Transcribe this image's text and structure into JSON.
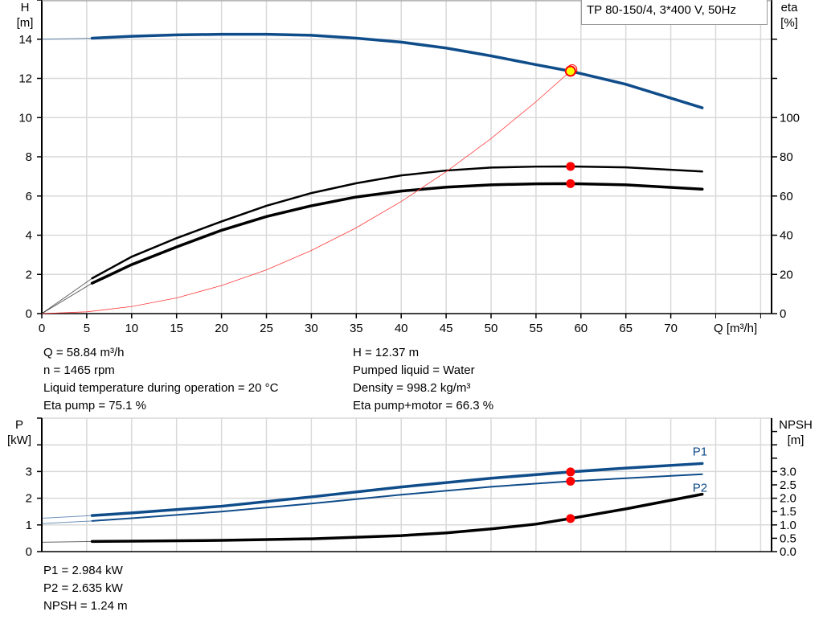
{
  "legend_title": "TP 80-150/4, 3*400 V, 50Hz",
  "info_top": {
    "left": [
      "Q = 58.84 m³/h",
      "n = 1465 rpm",
      "Liquid temperature during operation = 20 °C",
      "Eta pump = 75.1 %"
    ],
    "right": [
      "H = 12.37 m",
      "Pumped liquid = Water",
      "Density = 998.2 kg/m³",
      "Eta pump+motor = 66.3 %"
    ]
  },
  "info_bottom": [
    "P1 = 2.984 kW",
    "P2 = 2.635 kW",
    "NPSH = 1.24 m"
  ],
  "colors": {
    "head": "#0f4c8a",
    "eta": "#000000",
    "system": "#ff3b3b",
    "power": "#0f4c8a",
    "npsh": "#000000",
    "point": "#ff0000",
    "highlight": "#ffff00",
    "grid": "#d9d9d9"
  },
  "chart_data": [
    {
      "type": "line",
      "xlabel": "Q [m³/h]",
      "ylabel_left": [
        "H",
        "[m]"
      ],
      "ylabel_right": [
        "eta",
        "[%]"
      ],
      "xlim": [
        0,
        80
      ],
      "ylim_left": [
        0,
        16
      ],
      "ylim_right": [
        0,
        160
      ],
      "xticks": [
        0,
        5,
        10,
        15,
        20,
        25,
        30,
        35,
        40,
        45,
        50,
        55,
        60,
        65,
        70
      ],
      "yticks_left": [
        0,
        2,
        4,
        6,
        8,
        10,
        12,
        14
      ],
      "yticks_right": [
        0,
        20,
        40,
        60,
        80,
        100
      ],
      "grid": true,
      "series": [
        {
          "id": "head",
          "axis": "left",
          "x": [
            0,
            5.6,
            10,
            15,
            20,
            25,
            30,
            35,
            40,
            45,
            50,
            55,
            58.84,
            65,
            73.5
          ],
          "y": [
            14.0,
            14.05,
            14.15,
            14.22,
            14.25,
            14.25,
            14.2,
            14.05,
            13.85,
            13.55,
            13.15,
            12.7,
            12.37,
            11.7,
            10.5
          ]
        },
        {
          "id": "eta-pump",
          "axis": "right",
          "x": [
            0,
            5.6,
            10,
            15,
            20,
            25,
            30,
            35,
            40,
            45,
            50,
            55,
            58.84,
            65,
            73.5
          ],
          "y": [
            0,
            18,
            29,
            38.5,
            47,
            55,
            61.5,
            66.5,
            70.5,
            73,
            74.5,
            75,
            75.1,
            74.6,
            72.5
          ]
        },
        {
          "id": "eta-pump-motor",
          "axis": "right",
          "x": [
            0,
            5.6,
            10,
            15,
            20,
            25,
            30,
            35,
            40,
            45,
            50,
            55,
            58.84,
            65,
            73.5
          ],
          "y": [
            0,
            15.5,
            25,
            34,
            42.5,
            49.5,
            55,
            59.5,
            62.5,
            64.5,
            65.7,
            66.2,
            66.3,
            65.7,
            63.5
          ]
        },
        {
          "id": "system-curve",
          "axis": "left",
          "x": [
            0,
            5,
            10,
            15,
            20,
            25,
            30,
            35,
            40,
            45,
            50,
            55,
            58.84
          ],
          "y": [
            0,
            0.09,
            0.36,
            0.8,
            1.43,
            2.23,
            3.22,
            4.38,
            5.72,
            7.24,
            8.93,
            10.81,
            12.37
          ]
        }
      ],
      "duty_point": {
        "Q": 58.84,
        "H": 12.37,
        "eta_pump": 75.1,
        "eta_pump_motor": 66.3
      }
    },
    {
      "type": "line",
      "ylabel_left": [
        "P",
        "[kW]"
      ],
      "ylabel_right": [
        "NPSH",
        "[m]"
      ],
      "xlim": [
        0,
        80
      ],
      "ylim_left": [
        0,
        5
      ],
      "ylim_right": [
        0,
        5
      ],
      "yticks_left": [
        0,
        1,
        2,
        3
      ],
      "yticks_right": [
        0.0,
        0.5,
        1.0,
        1.5,
        2.0,
        2.5,
        3.0
      ],
      "grid": true,
      "series": [
        {
          "id": "P1",
          "name": "P1",
          "axis": "left",
          "x": [
            0,
            5.6,
            10,
            20,
            30,
            40,
            50,
            58.84,
            65,
            73.5
          ],
          "y": [
            1.25,
            1.35,
            1.45,
            1.7,
            2.05,
            2.42,
            2.75,
            2.984,
            3.13,
            3.3
          ]
        },
        {
          "id": "P2",
          "name": "P2",
          "axis": "left",
          "x": [
            0,
            5.6,
            10,
            20,
            30,
            40,
            50,
            58.84,
            65,
            73.5
          ],
          "y": [
            1.05,
            1.15,
            1.25,
            1.5,
            1.8,
            2.13,
            2.43,
            2.635,
            2.75,
            2.9
          ]
        },
        {
          "id": "NPSH",
          "axis": "right",
          "x": [
            0,
            5.6,
            10,
            20,
            30,
            40,
            45,
            50,
            55,
            58.84,
            65,
            73.5
          ],
          "y": [
            0.35,
            0.38,
            0.39,
            0.42,
            0.48,
            0.6,
            0.7,
            0.85,
            1.03,
            1.24,
            1.6,
            2.15
          ]
        }
      ],
      "duty_point": {
        "Q": 58.84,
        "P1": 2.984,
        "P2": 2.635,
        "NPSH": 1.24
      }
    }
  ]
}
